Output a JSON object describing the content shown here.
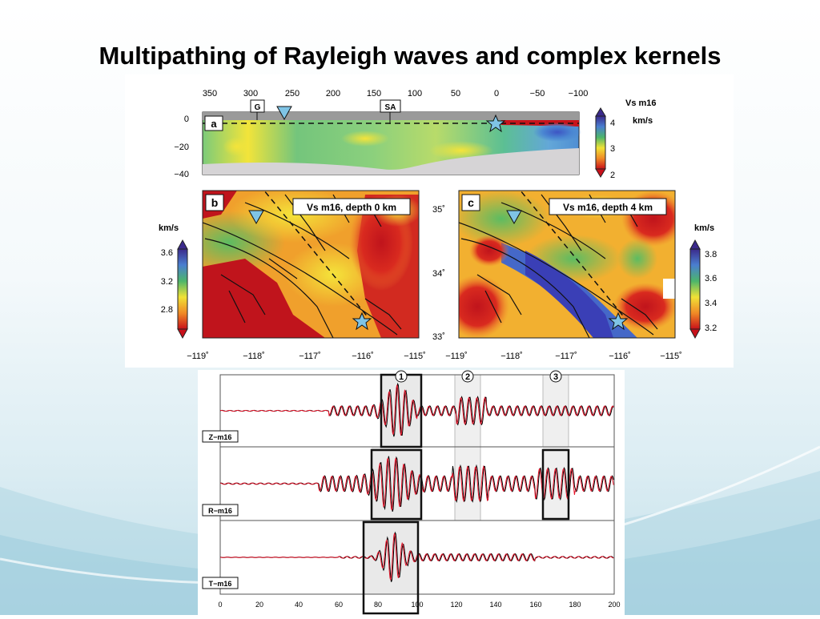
{
  "slide": {
    "title": "Multipathing of Rayleigh waves and complex kernels"
  },
  "panel_a": {
    "label": "a",
    "x_ticks": [
      "350",
      "300",
      "250",
      "200",
      "150",
      "100",
      "50",
      "0",
      "−50",
      "−100"
    ],
    "y_ticks": [
      "0",
      "−20",
      "−40"
    ],
    "markers": [
      "G",
      "SA"
    ],
    "colorbar": {
      "title": "Vs  m16",
      "unit": "km/s",
      "ticks": [
        "4",
        "3",
        "2"
      ]
    }
  },
  "panel_b": {
    "label": "b",
    "caption": "Vs m16, depth 0 km",
    "colorbar": {
      "unit": "km/s",
      "ticks": [
        "3.6",
        "3.2",
        "2.8"
      ]
    }
  },
  "panel_c": {
    "label": "c",
    "caption": "Vs m16, depth 4 km",
    "colorbar": {
      "unit": "km/s",
      "ticks": [
        "3.8",
        "3.6",
        "3.4",
        "3.2"
      ]
    }
  },
  "maps": {
    "lat_ticks": [
      "35˚",
      "34˚",
      "33˚"
    ],
    "lon_ticks_b": [
      "−119˚",
      "−118˚",
      "−117˚",
      "−116˚",
      "−115˚"
    ],
    "lon_ticks_c": [
      "−119˚",
      "−118˚",
      "−117˚",
      "−116˚",
      "−115˚"
    ]
  },
  "waveforms": {
    "traces": [
      "Z−m16",
      "R−m16",
      "T−m16"
    ],
    "window_labels": [
      "1",
      "2",
      "3"
    ],
    "x_ticks": [
      "0",
      "20",
      "40",
      "60",
      "80",
      "100",
      "120",
      "140",
      "160",
      "180",
      "200"
    ],
    "colors": {
      "observed": "#000000",
      "synthetic": "#e8142a"
    }
  },
  "colors": {
    "station_marker": "#7fc4e6",
    "title": "#000000"
  }
}
